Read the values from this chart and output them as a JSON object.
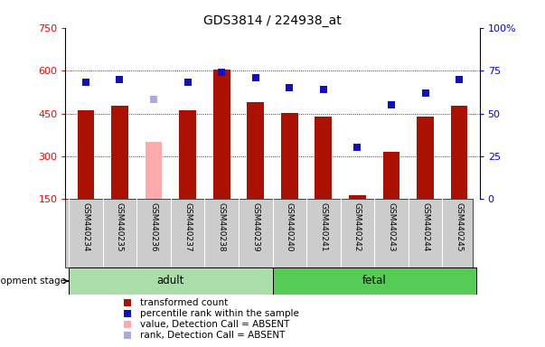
{
  "title": "GDS3814 / 224938_at",
  "categories": [
    "GSM440234",
    "GSM440235",
    "GSM440236",
    "GSM440237",
    "GSM440238",
    "GSM440239",
    "GSM440240",
    "GSM440241",
    "GSM440242",
    "GSM440243",
    "GSM440244",
    "GSM440245"
  ],
  "transformed_count": [
    460,
    478,
    null,
    460,
    605,
    490,
    453,
    440,
    165,
    315,
    438,
    478
  ],
  "absent_value": [
    null,
    null,
    352,
    null,
    null,
    null,
    null,
    null,
    null,
    null,
    null,
    null
  ],
  "percentile_rank": [
    68,
    70,
    null,
    68,
    74,
    71,
    65,
    64,
    30,
    55,
    62,
    70
  ],
  "absent_rank": [
    null,
    null,
    58,
    null,
    null,
    null,
    null,
    null,
    null,
    null,
    null,
    null
  ],
  "ylim_left": [
    150,
    750
  ],
  "ylim_right": [
    0,
    100
  ],
  "yticks_left": [
    150,
    300,
    450,
    600,
    750
  ],
  "yticks_right": [
    0,
    25,
    50,
    75,
    100
  ],
  "bar_color_present": "#aa1100",
  "bar_color_absent": "#ffaaaa",
  "dot_color_present": "#1111bb",
  "dot_color_absent": "#aaaadd",
  "group_adult_color": "#aaddaa",
  "group_fetal_color": "#55cc55",
  "tick_area_color": "#cccccc",
  "bar_width": 0.5,
  "dot_size": 40,
  "legend_items": [
    {
      "label": "transformed count",
      "color": "#aa1100"
    },
    {
      "label": "percentile rank within the sample",
      "color": "#1111bb"
    },
    {
      "label": "value, Detection Call = ABSENT",
      "color": "#ffaaaa"
    },
    {
      "label": "rank, Detection Call = ABSENT",
      "color": "#aaaadd"
    }
  ]
}
